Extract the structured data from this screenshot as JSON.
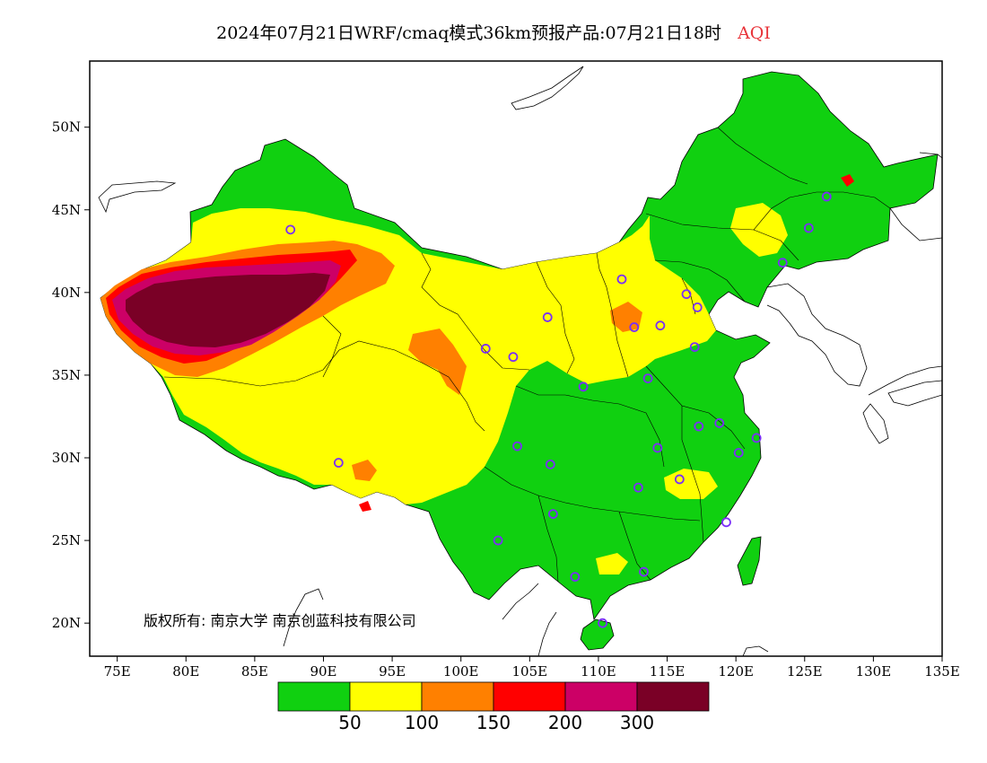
{
  "title": {
    "main": "2024年07月21日WRF/cmaq模式36km预报产品:07月21日18时",
    "variable": "AQI"
  },
  "map": {
    "lon_range": [
      73,
      135
    ],
    "lat_range": [
      18,
      54
    ],
    "lon_ticks": [
      "75E",
      "80E",
      "85E",
      "90E",
      "95E",
      "100E",
      "105E",
      "110E",
      "115E",
      "120E",
      "125E",
      "130E",
      "135E"
    ],
    "lat_ticks": [
      "20N",
      "25N",
      "30N",
      "35N",
      "40N",
      "45N",
      "50N"
    ],
    "copyright": "版权所有: 南京大学 南京创蓝科技有限公司"
  },
  "legend": {
    "breaks": [
      "50",
      "100",
      "150",
      "200",
      "300"
    ],
    "colors": [
      "#10d010",
      "#ffff00",
      "#ff8000",
      "#ff0000",
      "#cc0066",
      "#7a0026"
    ]
  },
  "stations": [
    [
      87.6,
      43.8
    ],
    [
      91.1,
      29.7
    ],
    [
      101.8,
      36.6
    ],
    [
      103.8,
      36.1
    ],
    [
      106.3,
      38.5
    ],
    [
      111.7,
      40.8
    ],
    [
      112.6,
      37.9
    ],
    [
      114.5,
      38.0
    ],
    [
      116.4,
      39.9
    ],
    [
      117.2,
      39.1
    ],
    [
      117.0,
      36.7
    ],
    [
      113.6,
      34.8
    ],
    [
      108.9,
      34.3
    ],
    [
      104.1,
      30.7
    ],
    [
      106.5,
      29.6
    ],
    [
      106.7,
      26.6
    ],
    [
      102.7,
      25.0
    ],
    [
      108.3,
      22.8
    ],
    [
      110.3,
      20.0
    ],
    [
      113.3,
      23.1
    ],
    [
      119.3,
      26.1
    ],
    [
      112.9,
      28.2
    ],
    [
      115.9,
      28.7
    ],
    [
      114.3,
      30.6
    ],
    [
      117.3,
      31.9
    ],
    [
      118.8,
      32.1
    ],
    [
      120.2,
      30.3
    ],
    [
      121.5,
      31.2
    ],
    [
      123.4,
      41.8
    ],
    [
      125.3,
      43.9
    ],
    [
      126.6,
      45.8
    ]
  ]
}
